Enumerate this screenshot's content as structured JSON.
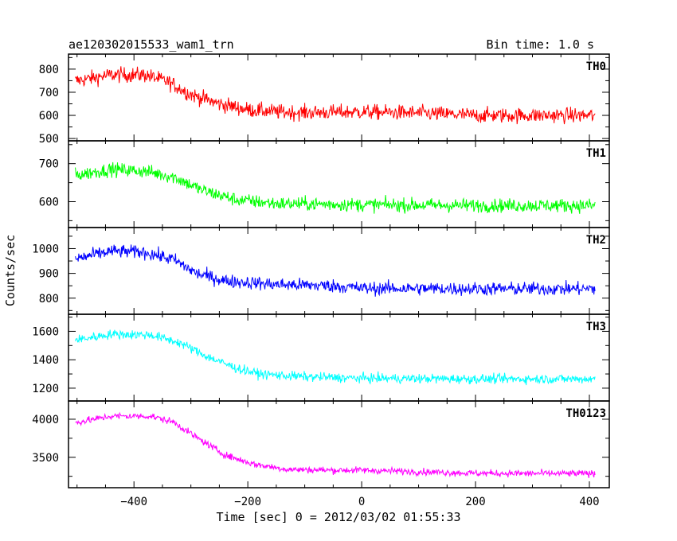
{
  "header": {
    "title": "ae120302015533_wam1_trn",
    "bin_time": "Bin time: 1.0 s"
  },
  "chart_data": {
    "type": "line",
    "xlabel": "Time [sec] 0 = 2012/03/02 01:55:33",
    "ylabel": "Counts/sec",
    "xlim": [
      -515,
      435
    ],
    "x_ticks": [
      -400,
      -200,
      0,
      200,
      400
    ],
    "x_tick_labels": [
      "−400",
      "−200",
      "0",
      "200",
      "400"
    ],
    "x_range": [
      -503,
      410
    ],
    "bin": 1.0,
    "grid": false,
    "panels": [
      {
        "name": "TH0",
        "color": "#ff0000",
        "ylim": [
          490,
          865
        ],
        "ticks": [
          500,
          600,
          700,
          800
        ],
        "profile": [
          [
            -500,
            750
          ],
          [
            -440,
            775
          ],
          [
            -380,
            775
          ],
          [
            -340,
            745
          ],
          [
            -300,
            690
          ],
          [
            -250,
            650
          ],
          [
            -200,
            625
          ],
          [
            -150,
            615
          ],
          [
            -100,
            612
          ],
          [
            0,
            615
          ],
          [
            100,
            610
          ],
          [
            200,
            600
          ],
          [
            300,
            600
          ],
          [
            410,
            600
          ]
        ],
        "noise": 55
      },
      {
        "name": "TH1",
        "color": "#00ff00",
        "ylim": [
          532,
          760
        ],
        "ticks": [
          600,
          700
        ],
        "profile": [
          [
            -500,
            670
          ],
          [
            -440,
            685
          ],
          [
            -380,
            680
          ],
          [
            -330,
            665
          ],
          [
            -280,
            630
          ],
          [
            -220,
            605
          ],
          [
            -150,
            595
          ],
          [
            0,
            592
          ],
          [
            200,
            590
          ],
          [
            410,
            590
          ]
        ],
        "noise": 30
      },
      {
        "name": "TH2",
        "color": "#0000ff",
        "ylim": [
          735,
          1085
        ],
        "ticks": [
          800,
          900,
          1000
        ],
        "profile": [
          [
            -500,
            960
          ],
          [
            -440,
            990
          ],
          [
            -380,
            985
          ],
          [
            -330,
            955
          ],
          [
            -290,
            900
          ],
          [
            -240,
            870
          ],
          [
            -150,
            855
          ],
          [
            -50,
            850
          ],
          [
            0,
            840
          ],
          [
            200,
            838
          ],
          [
            410,
            838
          ]
        ],
        "noise": 45
      },
      {
        "name": "TH3",
        "color": "#00ffff",
        "ylim": [
          1110,
          1720
        ],
        "ticks": [
          1200,
          1400,
          1600
        ],
        "profile": [
          [
            -500,
            1540
          ],
          [
            -440,
            1580
          ],
          [
            -370,
            1575
          ],
          [
            -320,
            1520
          ],
          [
            -270,
            1420
          ],
          [
            -220,
            1340
          ],
          [
            -180,
            1300
          ],
          [
            -100,
            1280
          ],
          [
            0,
            1270
          ],
          [
            200,
            1265
          ],
          [
            410,
            1265
          ]
        ],
        "noise": 55
      },
      {
        "name": "TH0123",
        "color": "#ff00ff",
        "ylim": [
          3100,
          4240
        ],
        "ticks": [
          3500,
          4000
        ],
        "profile": [
          [
            -500,
            3960
          ],
          [
            -440,
            4040
          ],
          [
            -370,
            4040
          ],
          [
            -330,
            3960
          ],
          [
            -290,
            3760
          ],
          [
            -240,
            3530
          ],
          [
            -190,
            3410
          ],
          [
            -130,
            3340
          ],
          [
            -50,
            3330
          ],
          [
            0,
            3330
          ],
          [
            200,
            3290
          ],
          [
            410,
            3285
          ]
        ],
        "noise": 75
      }
    ]
  }
}
